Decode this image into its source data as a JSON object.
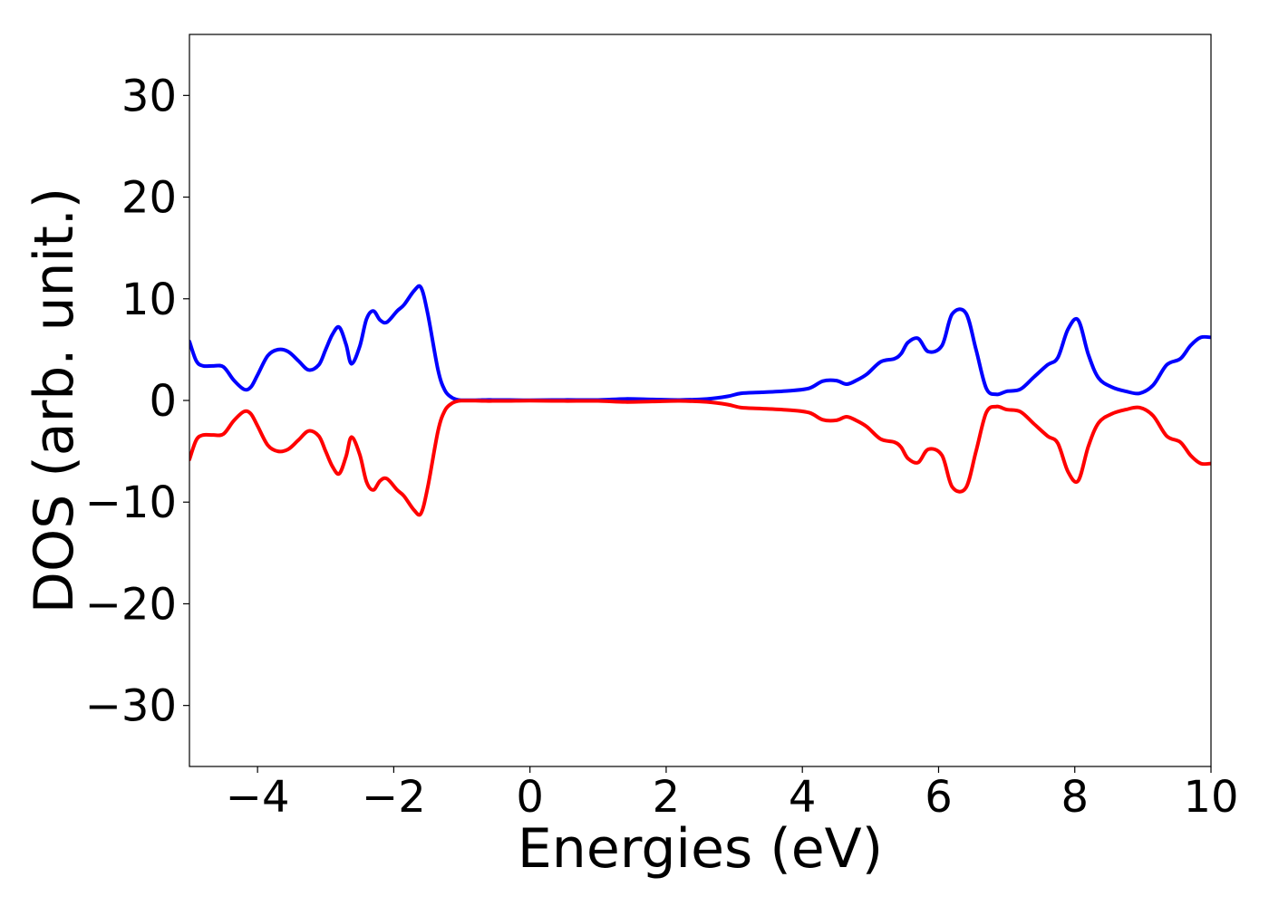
{
  "chart_data": {
    "type": "line",
    "title": "",
    "xlabel": "Energies (eV)",
    "ylabel": "DOS (arb. unit.)",
    "xlim": [
      -5,
      10
    ],
    "ylim": [
      -36,
      36
    ],
    "xticks": [
      -4,
      -2,
      0,
      2,
      4,
      6,
      8,
      10
    ],
    "xtick_labels": [
      "−4",
      "−2",
      "0",
      "2",
      "4",
      "6",
      "8",
      "10"
    ],
    "yticks": [
      30,
      20,
      10,
      0,
      -10,
      -20,
      -30
    ],
    "ytick_labels": [
      "30",
      "20",
      "10",
      "0",
      "−10",
      "−20",
      "−30"
    ],
    "grid": false,
    "legend": "none",
    "series": [
      {
        "color": "#0000ff",
        "x": [
          -5.0,
          -4.9,
          -4.8,
          -4.65,
          -4.5,
          -4.35,
          -4.2,
          -4.1,
          -4.0,
          -3.85,
          -3.7,
          -3.55,
          -3.4,
          -3.25,
          -3.1,
          -3.0,
          -2.9,
          -2.8,
          -2.7,
          -2.62,
          -2.5,
          -2.4,
          -2.3,
          -2.2,
          -2.1,
          -1.95,
          -1.85,
          -1.7,
          -1.6,
          -1.5,
          -1.35,
          -1.25,
          -1.15,
          -1.05,
          -0.95,
          -0.85,
          -0.75,
          -0.65,
          -0.55,
          -0.3,
          0.0,
          0.5,
          1.0,
          1.4,
          1.8,
          2.2,
          2.6,
          2.9,
          3.1,
          3.4,
          3.8,
          4.1,
          4.3,
          4.5,
          4.65,
          4.8,
          4.95,
          5.15,
          5.35,
          5.45,
          5.55,
          5.7,
          5.85,
          6.05,
          6.2,
          6.4,
          6.55,
          6.7,
          6.85,
          7.0,
          7.2,
          7.4,
          7.6,
          7.75,
          7.9,
          8.05,
          8.2,
          8.35,
          8.55,
          8.75,
          8.95,
          9.15,
          9.35,
          9.55,
          9.7,
          9.85,
          10.0
        ],
        "values": [
          5.8,
          3.9,
          3.4,
          3.4,
          3.3,
          2.0,
          1.1,
          1.3,
          2.5,
          4.4,
          5.0,
          4.8,
          3.9,
          3.0,
          3.5,
          5.0,
          6.5,
          7.2,
          5.5,
          3.6,
          5.3,
          8.0,
          8.8,
          7.9,
          7.7,
          8.8,
          9.4,
          10.8,
          11.1,
          8.5,
          3.0,
          1.0,
          0.3,
          0.05,
          0.02,
          0.02,
          0.03,
          0.05,
          0.05,
          0.04,
          0.02,
          0.05,
          0.05,
          0.15,
          0.1,
          0.05,
          0.15,
          0.4,
          0.7,
          0.8,
          0.95,
          1.2,
          1.9,
          1.95,
          1.6,
          2.0,
          2.6,
          3.8,
          4.1,
          4.6,
          5.7,
          6.1,
          4.8,
          5.4,
          8.5,
          8.6,
          5.0,
          1.2,
          0.6,
          0.9,
          1.1,
          2.3,
          3.5,
          4.2,
          7.0,
          7.9,
          4.5,
          2.2,
          1.3,
          0.9,
          0.7,
          1.5,
          3.5,
          4.1,
          5.4,
          6.2,
          6.2
        ]
      },
      {
        "color": "#ff0000",
        "x": [
          -5.0,
          -4.9,
          -4.8,
          -4.65,
          -4.5,
          -4.35,
          -4.2,
          -4.1,
          -4.0,
          -3.85,
          -3.7,
          -3.55,
          -3.4,
          -3.25,
          -3.1,
          -3.0,
          -2.9,
          -2.8,
          -2.7,
          -2.62,
          -2.5,
          -2.4,
          -2.3,
          -2.2,
          -2.1,
          -1.95,
          -1.85,
          -1.7,
          -1.6,
          -1.5,
          -1.35,
          -1.25,
          -1.15,
          -1.05,
          -0.95,
          -0.85,
          -0.75,
          -0.65,
          -0.55,
          -0.3,
          0.0,
          0.5,
          1.0,
          1.4,
          1.8,
          2.2,
          2.6,
          2.9,
          3.1,
          3.4,
          3.8,
          4.1,
          4.3,
          4.5,
          4.65,
          4.8,
          4.95,
          5.15,
          5.35,
          5.45,
          5.55,
          5.7,
          5.85,
          6.05,
          6.2,
          6.4,
          6.55,
          6.7,
          6.85,
          7.0,
          7.2,
          7.4,
          7.6,
          7.75,
          7.9,
          8.05,
          8.2,
          8.35,
          8.55,
          8.75,
          8.95,
          9.15,
          9.35,
          9.55,
          9.7,
          9.85,
          10.0
        ],
        "values": [
          -5.8,
          -3.9,
          -3.4,
          -3.4,
          -3.3,
          -2.0,
          -1.1,
          -1.3,
          -2.5,
          -4.4,
          -5.0,
          -4.8,
          -3.9,
          -3.0,
          -3.5,
          -5.0,
          -6.5,
          -7.2,
          -5.5,
          -3.6,
          -5.3,
          -8.0,
          -8.8,
          -7.9,
          -7.7,
          -8.8,
          -9.4,
          -10.8,
          -11.1,
          -8.5,
          -3.0,
          -1.0,
          -0.3,
          -0.05,
          -0.02,
          -0.02,
          -0.03,
          -0.05,
          -0.05,
          -0.04,
          -0.02,
          -0.05,
          -0.05,
          -0.15,
          -0.1,
          -0.05,
          -0.15,
          -0.4,
          -0.7,
          -0.8,
          -0.95,
          -1.2,
          -1.9,
          -1.95,
          -1.6,
          -2.0,
          -2.6,
          -3.8,
          -4.1,
          -4.6,
          -5.7,
          -6.1,
          -4.8,
          -5.4,
          -8.5,
          -8.6,
          -5.0,
          -1.2,
          -0.6,
          -0.9,
          -1.1,
          -2.3,
          -3.5,
          -4.2,
          -7.0,
          -7.9,
          -4.5,
          -2.2,
          -1.3,
          -0.9,
          -0.7,
          -1.5,
          -3.5,
          -4.1,
          -5.4,
          -6.2,
          -6.2
        ]
      }
    ]
  }
}
